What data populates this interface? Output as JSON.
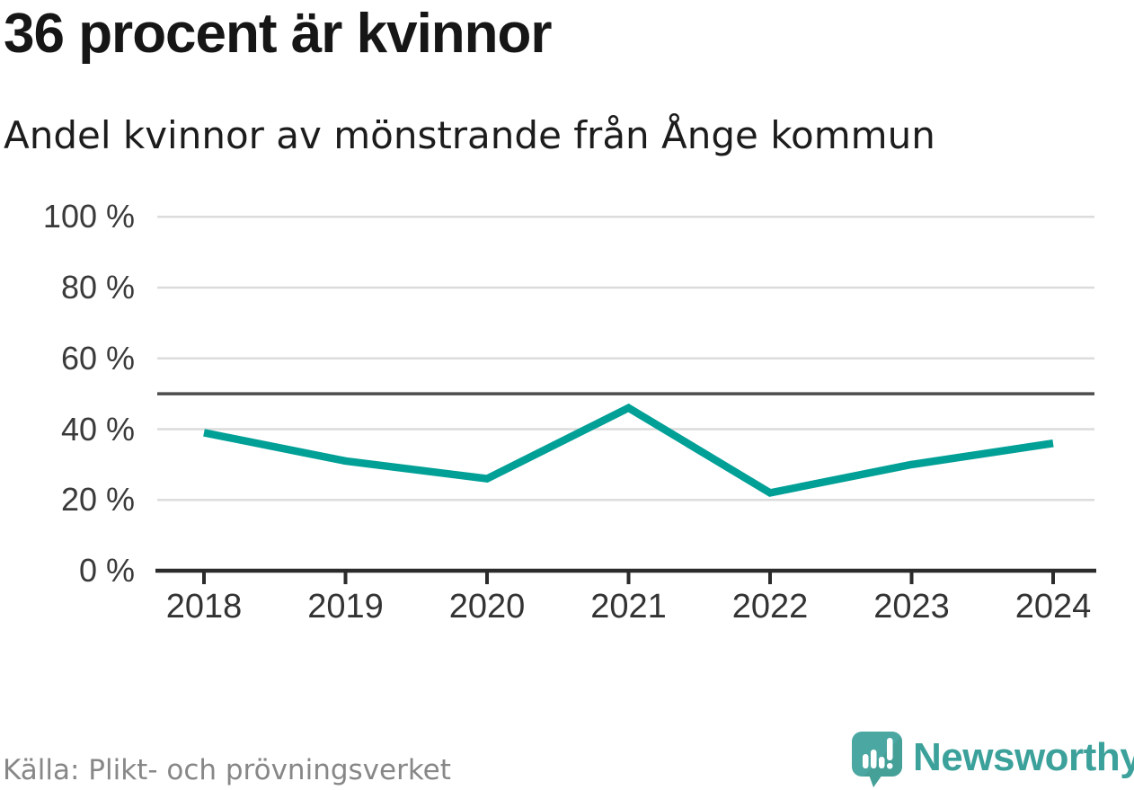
{
  "header": {
    "title": "36 procent är kvinnor",
    "subtitle": "Andel kvinnor av mönstrande från Ånge kommun"
  },
  "chart_data": {
    "type": "line",
    "title": "36 procent är kvinnor",
    "subtitle": "Andel kvinnor av mönstrande från Ånge kommun",
    "categories": [
      "2018",
      "2019",
      "2020",
      "2021",
      "2022",
      "2023",
      "2024"
    ],
    "series": [
      {
        "name": "Andel kvinnor av mönstrande",
        "values": [
          39,
          31,
          26,
          46,
          22,
          30,
          36
        ]
      }
    ],
    "unit": "%",
    "ylim": [
      0,
      100
    ],
    "yticks": [
      0,
      20,
      40,
      60,
      80,
      100
    ],
    "ytick_labels": [
      "0 %",
      "20 %",
      "40 %",
      "60 %",
      "80 %",
      "100 %"
    ],
    "reference_line": 50,
    "grid": true,
    "legend": "none",
    "latest_value_pct": 36
  },
  "footer": {
    "source": "Källa: Plikt- och prövningsverket",
    "brand": "Newsworthy"
  },
  "colors": {
    "line": "#00a096",
    "grid": "#dcdcdc",
    "reference": "#4d4d4d",
    "axis": "#2b2b2b",
    "tick_label": "#333333",
    "source_text": "#878787",
    "brand_text": "#3ba19a",
    "logo_bubble": "#4ba7a1",
    "logo_bubble_shade": "#419a92",
    "logo_marks": "#ffffff"
  }
}
